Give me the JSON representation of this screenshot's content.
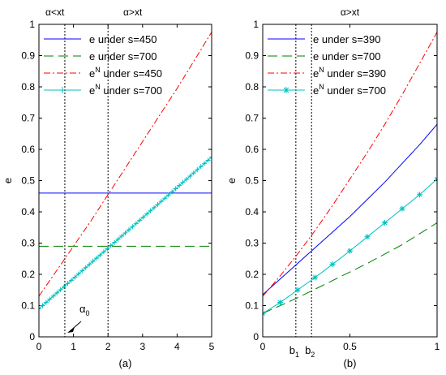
{
  "chart_data": [
    {
      "type": "line",
      "panel_label": "(a)",
      "top_labels": [
        "α<xt",
        "α>xt"
      ],
      "xlim": [
        0,
        5
      ],
      "ylim": [
        0,
        1
      ],
      "xticks": [
        "0",
        "1",
        "2",
        "3",
        "4",
        "5"
      ],
      "yticks": [
        "0",
        "0.1",
        "0.2",
        "0.3",
        "0.4",
        "0.5",
        "0.6",
        "0.7",
        "0.8",
        "0.9",
        "1"
      ],
      "xlabel": "",
      "ylabel": "e",
      "legend_position": "top-left",
      "series": [
        {
          "legend_base": "e",
          "legend_sup": "",
          "legend_rest": " under s=450",
          "color": "#0000ff",
          "dash": "",
          "marker": "none",
          "x": [
            0,
            5
          ],
          "y": [
            0.46,
            0.46
          ]
        },
        {
          "legend_base": "e",
          "legend_sup": "",
          "legend_rest": " under s=700",
          "color": "#008000",
          "dash": "12,6",
          "marker": "none",
          "x": [
            0,
            5
          ],
          "y": [
            0.29,
            0.29
          ]
        },
        {
          "legend_base": "e",
          "legend_sup": "N",
          "legend_rest": " under s=450",
          "color": "#ff0000",
          "dash": "8,3,2,3",
          "marker": "none",
          "x": [
            0,
            0.5,
            1,
            1.5,
            2,
            2.5,
            3,
            3.5,
            4,
            4.5,
            5
          ],
          "y": [
            0.13,
            0.21,
            0.29,
            0.37,
            0.455,
            0.54,
            0.625,
            0.71,
            0.795,
            0.885,
            0.975
          ]
        },
        {
          "legend_base": "e",
          "legend_sup": "N",
          "legend_rest": " under s=700",
          "color": "#00bfbf",
          "dash": "",
          "marker": "plus-dense",
          "x": [
            0,
            5
          ],
          "y": [
            0.09,
            0.575
          ]
        }
      ],
      "vlines": [
        0.75,
        2
      ],
      "annotation": {
        "base": "α",
        "sub": "0",
        "arrow_to_x": 0.75
      }
    },
    {
      "type": "line",
      "panel_label": "(b)",
      "top_labels": [
        "α>xt"
      ],
      "xlim": [
        0,
        1
      ],
      "ylim": [
        0,
        1
      ],
      "xticks": [
        "0",
        "0.5",
        "1"
      ],
      "yticks": [
        "0",
        "0.1",
        "0.2",
        "0.3",
        "0.4",
        "0.5",
        "0.6",
        "0.7",
        "0.8",
        "0.9",
        "1"
      ],
      "xlabel": "",
      "ylabel": "e",
      "legend_position": "top-left",
      "series": [
        {
          "legend_base": "e",
          "legend_sup": "",
          "legend_rest": " under s=390",
          "color": "#0000ff",
          "dash": "",
          "marker": "none",
          "x": [
            0,
            0.1,
            0.2,
            0.3,
            0.4,
            0.5,
            0.6,
            0.7,
            0.8,
            0.9,
            1
          ],
          "y": [
            0.135,
            0.185,
            0.235,
            0.285,
            0.335,
            0.385,
            0.44,
            0.495,
            0.555,
            0.615,
            0.68
          ]
        },
        {
          "legend_base": "e",
          "legend_sup": "",
          "legend_rest": " under s=700",
          "color": "#008000",
          "dash": "12,6",
          "marker": "none",
          "x": [
            0,
            0.2,
            0.4,
            0.6,
            0.8,
            1
          ],
          "y": [
            0.075,
            0.125,
            0.18,
            0.235,
            0.295,
            0.365
          ]
        },
        {
          "legend_base": "e",
          "legend_sup": "N",
          "legend_rest": " under s=390",
          "color": "#ff0000",
          "dash": "8,3,2,3",
          "marker": "none",
          "x": [
            0,
            0.1,
            0.2,
            0.3,
            0.4,
            0.5,
            0.6,
            0.7,
            0.8,
            0.9,
            1
          ],
          "y": [
            0.13,
            0.195,
            0.265,
            0.34,
            0.42,
            0.505,
            0.59,
            0.68,
            0.775,
            0.875,
            0.975
          ]
        },
        {
          "legend_base": "e",
          "legend_sup": "N",
          "legend_rest": " under s=700",
          "color": "#00bfbf",
          "dash": "",
          "marker": "star",
          "x": [
            0,
            0.1,
            0.2,
            0.3,
            0.4,
            0.5,
            0.6,
            0.7,
            0.8,
            0.9,
            1
          ],
          "y": [
            0.075,
            0.11,
            0.15,
            0.19,
            0.232,
            0.275,
            0.32,
            0.365,
            0.41,
            0.455,
            0.505
          ]
        }
      ],
      "vlines": [
        0.19,
        0.28
      ],
      "vline_labels": [
        {
          "base": "b",
          "sub": "1",
          "x": 0.19
        },
        {
          "base": "b",
          "sub": "2",
          "x": 0.28
        }
      ]
    }
  ]
}
